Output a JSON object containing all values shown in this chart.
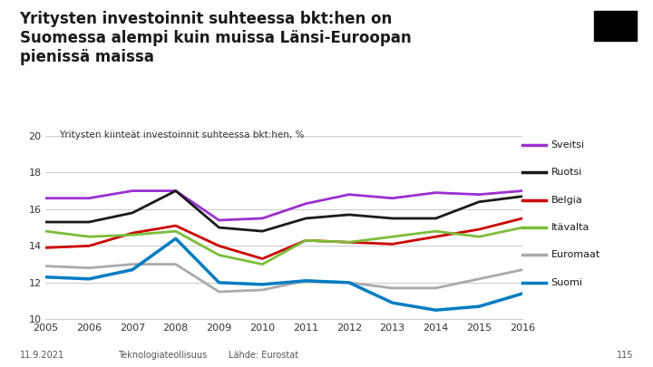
{
  "title_line1": "Yritysten investoinnit suhteessa bkt:hen on",
  "title_line2": "Suomessa alempi kuin muissa Länsi-Euroopan",
  "title_line3": "pienissä maissa",
  "subtitle": "Yritysten kiinteät investoinnit suhteessa bkt:hen, %",
  "years": [
    2005,
    2006,
    2007,
    2008,
    2009,
    2010,
    2011,
    2012,
    2013,
    2014,
    2015,
    2016
  ],
  "series": {
    "Sveitsi": [
      16.6,
      16.6,
      17.0,
      17.0,
      15.4,
      15.5,
      16.3,
      16.8,
      16.6,
      16.9,
      16.8,
      17.0
    ],
    "Ruotsi": [
      15.3,
      15.3,
      15.8,
      17.0,
      15.0,
      14.8,
      15.5,
      15.7,
      15.5,
      15.5,
      16.4,
      16.7
    ],
    "Belgia": [
      13.9,
      14.0,
      14.7,
      15.1,
      14.0,
      13.3,
      14.3,
      14.2,
      14.1,
      14.5,
      14.9,
      15.5
    ],
    "Itävalta": [
      14.8,
      14.5,
      14.6,
      14.8,
      13.5,
      13.0,
      14.3,
      14.2,
      14.5,
      14.8,
      14.5,
      15.0
    ],
    "Euromaat": [
      12.9,
      12.8,
      13.0,
      13.0,
      11.5,
      11.6,
      12.1,
      12.0,
      11.7,
      11.7,
      12.2,
      12.7
    ],
    "Suomi": [
      12.3,
      12.2,
      12.7,
      14.4,
      12.0,
      11.9,
      12.1,
      12.0,
      10.9,
      10.5,
      10.7,
      11.4
    ]
  },
  "colors": {
    "Sveitsi": "#9b30d0",
    "Ruotsi": "#1a1a1a",
    "Belgia": "#cc0000",
    "Itävalta": "#7cbd3a",
    "Euromaat": "#aaaaaa",
    "Suomi": "#007cc2"
  },
  "ylim": [
    10,
    20
  ],
  "yticks": [
    10,
    12,
    14,
    16,
    18,
    20
  ],
  "footer_left": "11.9.2021",
  "footer_mid": "Teknologiateollisuus",
  "footer_right": "Lähde: Eurostat",
  "footer_page": "115",
  "background_color": "#ffffff",
  "grid_color": "#cccccc"
}
